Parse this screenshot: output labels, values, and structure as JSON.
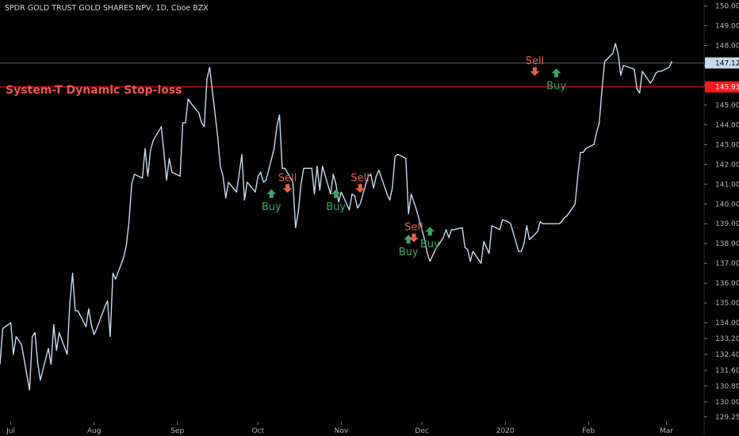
{
  "header": {
    "ticker_title": "SPDR GOLD TRUST GOLD SHARES NPV, 1D, Cboe BZX"
  },
  "indicator": {
    "label": "System-T Dynamic Stop-loss",
    "color": "#ef5350"
  },
  "colors": {
    "background": "#000000",
    "price_line": "#c8dcf0",
    "stop_line": "#ff1a1a",
    "current_line": "#5d606b",
    "current_tag_bg": "#c8dcf0",
    "stop_tag_bg": "#ff1a1a",
    "buy": "#3aa66a",
    "sell": "#e8604c"
  },
  "chart_data": {
    "type": "line",
    "title": "SPDR GOLD TRUST GOLD SHARES NPV, 1D, Cboe BZX",
    "xlabel": "",
    "ylabel": "",
    "x_range": [
      "2019-06-27",
      "2020-03-15"
    ],
    "ylim": [
      129.0,
      150.3
    ],
    "y_ticks": [
      "129.25",
      "130.00",
      "130.80",
      "131.60",
      "132.40",
      "133.20",
      "134.00",
      "135.00",
      "136.00",
      "137.00",
      "138.00",
      "139.00",
      "140.00",
      "141.00",
      "142.00",
      "143.00",
      "144.00",
      "145.00",
      "146.00",
      "147.00",
      "148.00",
      "149.00",
      "150.00"
    ],
    "x_ticks": [
      "Jul",
      "Aug",
      "Sep",
      "Oct",
      "Nov",
      "Dec",
      "2020",
      "Feb",
      "Mar"
    ],
    "x_tick_dates": [
      "2019-07-01",
      "2019-08-01",
      "2019-09-01",
      "2019-10-01",
      "2019-11-01",
      "2019-12-01",
      "2020-01-01",
      "2020-02-01",
      "2020-03-01"
    ],
    "series": [
      {
        "values": [
          {
            "x": "2019-06-27",
            "y": 131.9
          },
          {
            "x": "2019-06-28",
            "y": 133.7
          },
          {
            "x": "2019-07-01",
            "y": 134.0
          },
          {
            "x": "2019-07-02",
            "y": 132.4
          },
          {
            "x": "2019-07-03",
            "y": 133.3
          },
          {
            "x": "2019-07-05",
            "y": 132.9
          },
          {
            "x": "2019-07-08",
            "y": 130.6
          },
          {
            "x": "2019-07-09",
            "y": 133.3
          },
          {
            "x": "2019-07-10",
            "y": 133.5
          },
          {
            "x": "2019-07-11",
            "y": 132.0
          },
          {
            "x": "2019-07-12",
            "y": 131.1
          },
          {
            "x": "2019-07-15",
            "y": 132.7
          },
          {
            "x": "2019-07-16",
            "y": 131.9
          },
          {
            "x": "2019-07-17",
            "y": 133.9
          },
          {
            "x": "2019-07-18",
            "y": 132.6
          },
          {
            "x": "2019-07-19",
            "y": 133.5
          },
          {
            "x": "2019-07-22",
            "y": 132.4
          },
          {
            "x": "2019-07-23",
            "y": 135.0
          },
          {
            "x": "2019-07-24",
            "y": 136.5
          },
          {
            "x": "2019-07-25",
            "y": 134.6
          },
          {
            "x": "2019-07-26",
            "y": 134.6
          },
          {
            "x": "2019-07-29",
            "y": 133.8
          },
          {
            "x": "2019-07-30",
            "y": 134.7
          },
          {
            "x": "2019-07-31",
            "y": 133.9
          },
          {
            "x": "2019-08-01",
            "y": 133.4
          },
          {
            "x": "2019-08-02",
            "y": 133.7
          },
          {
            "x": "2019-08-05",
            "y": 134.8
          },
          {
            "x": "2019-08-06",
            "y": 135.1
          },
          {
            "x": "2019-08-07",
            "y": 133.3
          },
          {
            "x": "2019-08-08",
            "y": 136.5
          },
          {
            "x": "2019-08-09",
            "y": 136.2
          },
          {
            "x": "2019-08-12",
            "y": 137.3
          },
          {
            "x": "2019-08-13",
            "y": 137.9
          },
          {
            "x": "2019-08-14",
            "y": 139.1
          },
          {
            "x": "2019-08-15",
            "y": 141.0
          },
          {
            "x": "2019-08-16",
            "y": 141.5
          },
          {
            "x": "2019-08-19",
            "y": 141.3
          },
          {
            "x": "2019-08-20",
            "y": 142.8
          },
          {
            "x": "2019-08-21",
            "y": 141.4
          },
          {
            "x": "2019-08-22",
            "y": 142.7
          },
          {
            "x": "2019-08-23",
            "y": 143.2
          },
          {
            "x": "2019-08-26",
            "y": 143.9
          },
          {
            "x": "2019-08-27",
            "y": 142.6
          },
          {
            "x": "2019-08-28",
            "y": 141.2
          },
          {
            "x": "2019-08-29",
            "y": 142.3
          },
          {
            "x": "2019-08-30",
            "y": 141.6
          },
          {
            "x": "2019-09-02",
            "y": 141.4
          },
          {
            "x": "2019-09-03",
            "y": 144.1
          },
          {
            "x": "2019-09-04",
            "y": 144.1
          },
          {
            "x": "2019-09-05",
            "y": 145.3
          },
          {
            "x": "2019-09-06",
            "y": 145.1
          },
          {
            "x": "2019-09-09",
            "y": 144.6
          },
          {
            "x": "2019-09-10",
            "y": 144.1
          },
          {
            "x": "2019-09-11",
            "y": 143.9
          },
          {
            "x": "2019-09-12",
            "y": 146.3
          },
          {
            "x": "2019-09-13",
            "y": 146.9
          },
          {
            "x": "2019-09-16",
            "y": 143.4
          },
          {
            "x": "2019-09-17",
            "y": 141.9
          },
          {
            "x": "2019-09-18",
            "y": 141.4
          },
          {
            "x": "2019-09-19",
            "y": 140.3
          },
          {
            "x": "2019-09-20",
            "y": 141.1
          },
          {
            "x": "2019-09-23",
            "y": 140.6
          },
          {
            "x": "2019-09-24",
            "y": 141.5
          },
          {
            "x": "2019-09-25",
            "y": 142.5
          },
          {
            "x": "2019-09-26",
            "y": 140.2
          },
          {
            "x": "2019-09-27",
            "y": 141.1
          },
          {
            "x": "2019-09-30",
            "y": 140.6
          },
          {
            "x": "2019-10-01",
            "y": 141.4
          },
          {
            "x": "2019-10-02",
            "y": 141.6
          },
          {
            "x": "2019-10-03",
            "y": 141.1
          },
          {
            "x": "2019-10-04",
            "y": 141.2
          },
          {
            "x": "2019-10-07",
            "y": 142.8
          },
          {
            "x": "2019-10-08",
            "y": 143.9
          },
          {
            "x": "2019-10-09",
            "y": 144.5
          },
          {
            "x": "2019-10-10",
            "y": 141.8
          },
          {
            "x": "2019-10-11",
            "y": 141.8
          },
          {
            "x": "2019-10-14",
            "y": 141.1
          },
          {
            "x": "2019-10-15",
            "y": 138.8
          },
          {
            "x": "2019-10-16",
            "y": 139.6
          },
          {
            "x": "2019-10-17",
            "y": 141.0
          },
          {
            "x": "2019-10-18",
            "y": 141.8
          },
          {
            "x": "2019-10-21",
            "y": 141.8
          },
          {
            "x": "2019-10-22",
            "y": 140.5
          },
          {
            "x": "2019-10-23",
            "y": 141.9
          },
          {
            "x": "2019-10-24",
            "y": 140.7
          },
          {
            "x": "2019-10-25",
            "y": 141.9
          },
          {
            "x": "2019-10-28",
            "y": 140.5
          },
          {
            "x": "2019-10-29",
            "y": 141.5
          },
          {
            "x": "2019-10-30",
            "y": 141.0
          },
          {
            "x": "2019-10-31",
            "y": 140.1
          },
          {
            "x": "2019-11-01",
            "y": 140.6
          },
          {
            "x": "2019-11-04",
            "y": 139.7
          },
          {
            "x": "2019-11-05",
            "y": 140.5
          },
          {
            "x": "2019-11-06",
            "y": 140.4
          },
          {
            "x": "2019-11-07",
            "y": 139.8
          },
          {
            "x": "2019-11-08",
            "y": 140.0
          },
          {
            "x": "2019-11-11",
            "y": 141.4
          },
          {
            "x": "2019-11-12",
            "y": 141.5
          },
          {
            "x": "2019-11-13",
            "y": 140.8
          },
          {
            "x": "2019-11-14",
            "y": 141.4
          },
          {
            "x": "2019-11-15",
            "y": 141.7
          },
          {
            "x": "2019-11-18",
            "y": 140.5
          },
          {
            "x": "2019-11-19",
            "y": 140.2
          },
          {
            "x": "2019-11-20",
            "y": 140.8
          },
          {
            "x": "2019-11-21",
            "y": 142.4
          },
          {
            "x": "2019-11-22",
            "y": 142.5
          },
          {
            "x": "2019-11-25",
            "y": 142.3
          },
          {
            "x": "2019-11-26",
            "y": 139.5
          },
          {
            "x": "2019-11-27",
            "y": 140.5
          },
          {
            "x": "2019-11-29",
            "y": 139.7
          },
          {
            "x": "2019-12-02",
            "y": 138.2
          },
          {
            "x": "2019-12-03",
            "y": 137.5
          },
          {
            "x": "2019-12-04",
            "y": 137.1
          },
          {
            "x": "2019-12-05",
            "y": 137.4
          },
          {
            "x": "2019-12-06",
            "y": 137.7
          },
          {
            "x": "2019-12-09",
            "y": 138.3
          },
          {
            "x": "2019-12-10",
            "y": 138.7
          },
          {
            "x": "2019-12-11",
            "y": 138.3
          },
          {
            "x": "2019-12-12",
            "y": 138.7
          },
          {
            "x": "2019-12-13",
            "y": 138.7
          },
          {
            "x": "2019-12-16",
            "y": 138.8
          },
          {
            "x": "2019-12-17",
            "y": 137.8
          },
          {
            "x": "2019-12-18",
            "y": 137.7
          },
          {
            "x": "2019-12-19",
            "y": 137.1
          },
          {
            "x": "2019-12-20",
            "y": 137.6
          },
          {
            "x": "2019-12-23",
            "y": 137.0
          },
          {
            "x": "2019-12-24",
            "y": 138.1
          },
          {
            "x": "2019-12-26",
            "y": 137.5
          },
          {
            "x": "2019-12-27",
            "y": 138.9
          },
          {
            "x": "2019-12-30",
            "y": 138.7
          },
          {
            "x": "2019-12-31",
            "y": 139.2
          },
          {
            "x": "2020-01-02",
            "y": 139.1
          },
          {
            "x": "2020-01-03",
            "y": 139.0
          },
          {
            "x": "2020-01-06",
            "y": 137.6
          },
          {
            "x": "2020-01-07",
            "y": 137.6
          },
          {
            "x": "2020-01-08",
            "y": 138.0
          },
          {
            "x": "2020-01-09",
            "y": 138.9
          },
          {
            "x": "2020-01-10",
            "y": 138.2
          },
          {
            "x": "2020-01-13",
            "y": 138.6
          },
          {
            "x": "2020-01-14",
            "y": 139.1
          },
          {
            "x": "2020-01-15",
            "y": 139.0
          },
          {
            "x": "2020-01-16",
            "y": 139.0
          },
          {
            "x": "2020-01-17",
            "y": 139.0
          },
          {
            "x": "2020-01-21",
            "y": 139.0
          },
          {
            "x": "2020-01-22",
            "y": 139.1
          },
          {
            "x": "2020-01-23",
            "y": 139.3
          },
          {
            "x": "2020-01-24",
            "y": 139.4
          },
          {
            "x": "2020-01-27",
            "y": 140.0
          },
          {
            "x": "2020-01-28",
            "y": 141.4
          },
          {
            "x": "2020-01-29",
            "y": 142.6
          },
          {
            "x": "2020-01-30",
            "y": 142.6
          },
          {
            "x": "2020-01-31",
            "y": 142.8
          },
          {
            "x": "2020-02-03",
            "y": 143.0
          },
          {
            "x": "2020-02-04",
            "y": 143.6
          },
          {
            "x": "2020-02-05",
            "y": 144.1
          },
          {
            "x": "2020-02-06",
            "y": 145.8
          },
          {
            "x": "2020-02-07",
            "y": 147.2
          },
          {
            "x": "2020-02-10",
            "y": 147.6
          },
          {
            "x": "2020-02-11",
            "y": 148.1
          },
          {
            "x": "2020-02-12",
            "y": 147.6
          },
          {
            "x": "2020-02-13",
            "y": 146.5
          },
          {
            "x": "2020-02-14",
            "y": 147.0
          },
          {
            "x": "2020-02-18",
            "y": 146.8
          },
          {
            "x": "2020-02-19",
            "y": 145.8
          },
          {
            "x": "2020-02-20",
            "y": 145.6
          },
          {
            "x": "2020-02-21",
            "y": 146.7
          },
          {
            "x": "2020-02-24",
            "y": 146.1
          },
          {
            "x": "2020-02-25",
            "y": 146.3
          },
          {
            "x": "2020-02-26",
            "y": 146.6
          },
          {
            "x": "2020-02-27",
            "y": 146.7
          },
          {
            "x": "2020-02-28",
            "y": 146.7
          },
          {
            "x": "2020-03-02",
            "y": 146.9
          },
          {
            "x": "2020-03-03",
            "y": 147.2
          }
        ]
      }
    ],
    "horizontal_lines": [
      {
        "label": "147.12",
        "value": 147.12
      },
      {
        "label": "145.91",
        "value": 145.91
      }
    ],
    "signals": [
      {
        "type": "buy",
        "text": "Buy",
        "date": "2019-10-06",
        "price": 140.5
      },
      {
        "type": "sell",
        "text": "Sell",
        "date": "2019-10-12",
        "price": 140.8
      },
      {
        "type": "buy",
        "text": "Buy",
        "date": "2019-10-30",
        "price": 140.5
      },
      {
        "type": "sell",
        "text": "Sell",
        "date": "2019-11-08",
        "price": 140.8
      },
      {
        "type": "buy",
        "text": "Buy",
        "date": "2019-11-26",
        "price": 138.2
      },
      {
        "type": "sell",
        "text": "Sell",
        "date": "2019-11-28",
        "price": 138.3
      },
      {
        "type": "buy",
        "text": "Buy",
        "date": "2019-12-04",
        "price": 138.6
      },
      {
        "type": "sell",
        "text": "Sell",
        "date": "2020-01-12",
        "price": 146.7
      },
      {
        "type": "buy",
        "text": "Buy",
        "date": "2020-01-20",
        "price": 146.6
      }
    ]
  }
}
